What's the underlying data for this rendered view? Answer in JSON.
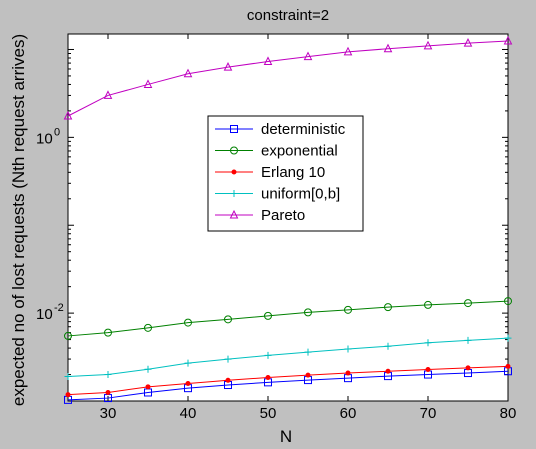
{
  "chart_data": {
    "type": "line",
    "title": "constraint=2",
    "xlabel": "N",
    "ylabel": "expected no of lost requests (Nth request arrives)",
    "yscale": "log",
    "xlim": [
      25,
      80
    ],
    "ylim": [
      0.001,
      15
    ],
    "x": [
      25,
      30,
      35,
      40,
      45,
      50,
      55,
      60,
      65,
      70,
      75,
      80
    ],
    "x_ticks": [
      "30",
      "40",
      "50",
      "60",
      "70",
      "80"
    ],
    "y_ticks": [
      {
        "base": "10",
        "exp": "0"
      },
      {
        "base": "10",
        "exp": "-2"
      }
    ],
    "legend_position": "upper-center",
    "grid": false,
    "series": [
      {
        "name": "deterministic",
        "color": "#0000ff",
        "marker": "square",
        "values": [
          0.00103,
          0.00108,
          0.00125,
          0.0014,
          0.00152,
          0.00163,
          0.00173,
          0.00182,
          0.00192,
          0.002,
          0.00208,
          0.00218
        ]
      },
      {
        "name": "exponential",
        "color": "#008000",
        "marker": "circle",
        "values": [
          0.0055,
          0.006,
          0.0068,
          0.0078,
          0.0085,
          0.0093,
          0.0102,
          0.0109,
          0.0117,
          0.0124,
          0.013,
          0.0137
        ]
      },
      {
        "name": "Erlang 10",
        "color": "#ff0000",
        "marker": "dot",
        "values": [
          0.00118,
          0.00125,
          0.00145,
          0.00158,
          0.00172,
          0.00185,
          0.00197,
          0.00208,
          0.00218,
          0.00228,
          0.00238,
          0.00248
        ]
      },
      {
        "name": "uniform[0,b]",
        "color": "#00c0c0",
        "marker": "plus",
        "values": [
          0.0019,
          0.002,
          0.0023,
          0.0027,
          0.003,
          0.0033,
          0.0036,
          0.0039,
          0.0042,
          0.0046,
          0.0049,
          0.0052
        ]
      },
      {
        "name": "Pareto",
        "color": "#c000c0",
        "marker": "triangle",
        "values": [
          1.75,
          3.0,
          4.0,
          5.3,
          6.3,
          7.3,
          8.3,
          9.4,
          10.2,
          11.0,
          11.8,
          12.5
        ]
      }
    ]
  }
}
